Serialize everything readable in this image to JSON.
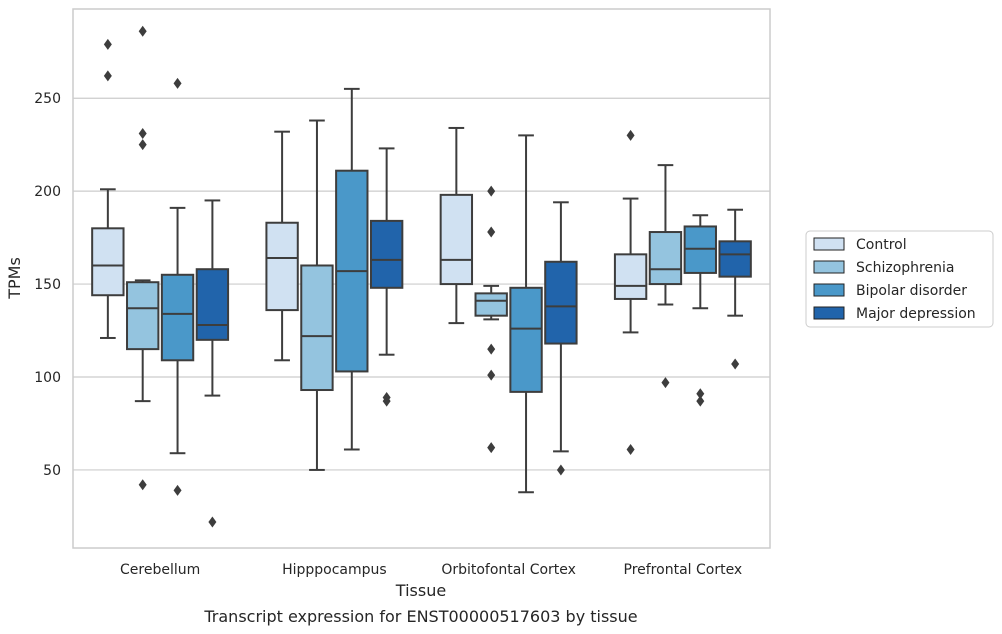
{
  "chart_data": {
    "type": "boxplot",
    "title": "Transcript expression for ENST00000517603 by tissue",
    "xlabel": "Tissue",
    "ylabel": "TPMs",
    "categories": [
      "Cerebellum",
      "Hipppocampus",
      "Orbitofontal Cortex",
      "Prefrontal Cortex"
    ],
    "yticks": [
      50,
      100,
      150,
      200,
      250
    ],
    "ylim": [
      8,
      298
    ],
    "grid": "horizontal",
    "legend_position": "right",
    "series": [
      {
        "name": "Control",
        "color": "#d0e1f2",
        "boxes": [
          {
            "whisker_low": 121,
            "q1": 144,
            "median": 160,
            "q3": 180,
            "whisker_high": 201,
            "outliers": [
              262,
              279
            ]
          },
          {
            "whisker_low": 109,
            "q1": 136,
            "median": 164,
            "q3": 183,
            "whisker_high": 232,
            "outliers": []
          },
          {
            "whisker_low": 129,
            "q1": 150,
            "median": 163,
            "q3": 198,
            "whisker_high": 234,
            "outliers": []
          },
          {
            "whisker_low": 124,
            "q1": 142,
            "median": 149,
            "q3": 166,
            "whisker_high": 196,
            "outliers": [
              61,
              230
            ]
          }
        ]
      },
      {
        "name": "Schizophrenia",
        "color": "#94c4df",
        "boxes": [
          {
            "whisker_low": 87,
            "q1": 115,
            "median": 137,
            "q3": 151,
            "whisker_high": 152,
            "outliers": [
              42,
              225,
              231,
              286
            ]
          },
          {
            "whisker_low": 50,
            "q1": 93,
            "median": 122,
            "q3": 160,
            "whisker_high": 238,
            "outliers": []
          },
          {
            "whisker_low": 131,
            "q1": 133,
            "median": 141,
            "q3": 145,
            "whisker_high": 149,
            "outliers": [
              62,
              101,
              115,
              178,
              200
            ]
          },
          {
            "whisker_low": 139,
            "q1": 150,
            "median": 158,
            "q3": 178,
            "whisker_high": 214,
            "outliers": [
              97
            ]
          }
        ]
      },
      {
        "name": "Bipolar disorder",
        "color": "#4a98c9",
        "boxes": [
          {
            "whisker_low": 59,
            "q1": 109,
            "median": 134,
            "q3": 155,
            "whisker_high": 191,
            "outliers": [
              39,
              258
            ]
          },
          {
            "whisker_low": 61,
            "q1": 103,
            "median": 157,
            "q3": 211,
            "whisker_high": 255,
            "outliers": []
          },
          {
            "whisker_low": 38,
            "q1": 92,
            "median": 126,
            "q3": 148,
            "whisker_high": 230,
            "outliers": []
          },
          {
            "whisker_low": 137,
            "q1": 156,
            "median": 169,
            "q3": 181,
            "whisker_high": 187,
            "outliers": [
              87,
              91
            ]
          }
        ]
      },
      {
        "name": "Major depression",
        "color": "#2164ab",
        "boxes": [
          {
            "whisker_low": 90,
            "q1": 120,
            "median": 128,
            "q3": 158,
            "whisker_high": 195,
            "outliers": [
              22
            ]
          },
          {
            "whisker_low": 112,
            "q1": 148,
            "median": 163,
            "q3": 184,
            "whisker_high": 223,
            "outliers": [
              87,
              89
            ]
          },
          {
            "whisker_low": 60,
            "q1": 118,
            "median": 138,
            "q3": 162,
            "whisker_high": 194,
            "outliers": [
              50
            ]
          },
          {
            "whisker_low": 133,
            "q1": 154,
            "median": 166,
            "q3": 173,
            "whisker_high": 190,
            "outliers": [
              107
            ]
          }
        ]
      }
    ]
  }
}
